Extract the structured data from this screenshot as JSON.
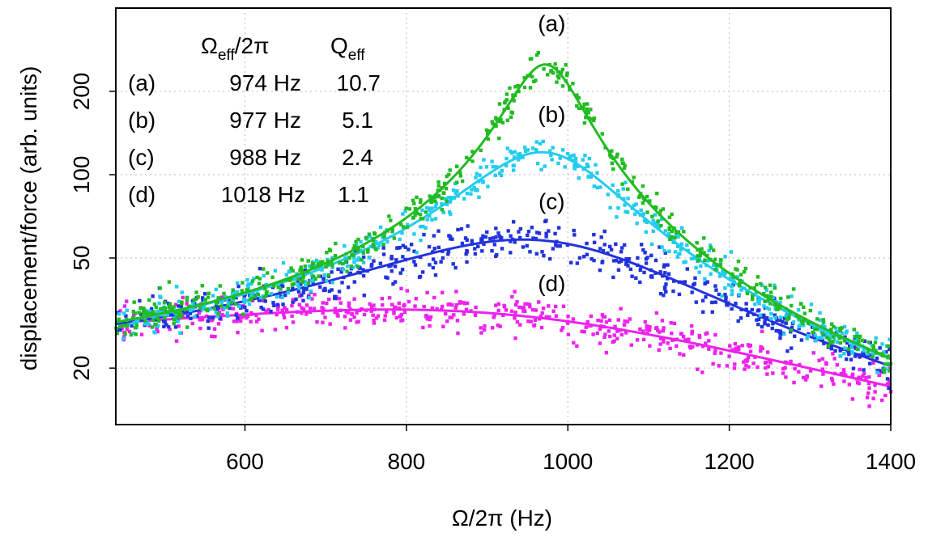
{
  "chart_data": {
    "type": "scatter",
    "x_scale": "linear",
    "y_scale": "log",
    "xlim": [
      440,
      1400
    ],
    "ylim": [
      12.5,
      400
    ],
    "xticks": [
      600,
      800,
      1000,
      1200,
      1400
    ],
    "yticks": [
      20,
      50,
      100,
      200
    ],
    "xlabel": "Ω/2π (Hz)",
    "ylabel": "displacement/force (arb. units)",
    "grid": true,
    "legend": {
      "placement": "top-left",
      "header_freq": "Ω",
      "header_freq_sub": "eff",
      "header_freq_suffix": "/2π",
      "header_q": "Q",
      "header_q_sub": "eff",
      "rows": [
        {
          "label": "(a)",
          "freq": "974 Hz",
          "q": "10.7",
          "color": "#22bb22"
        },
        {
          "label": "(b)",
          "freq": "977 Hz",
          "q": "5.1",
          "color": "#22ccee"
        },
        {
          "label": "(c)",
          "freq": "988 Hz",
          "q": "2.4",
          "color": "#2233dd"
        },
        {
          "label": "(d)",
          "freq": "1018 Hz",
          "q": "1.1",
          "color": "#ee22ee"
        }
      ]
    },
    "series": [
      {
        "name": "(a)",
        "color": "#22bb22",
        "f0": 974,
        "Q": 10.7,
        "peak": 250,
        "scatter": 0.07,
        "seed": 11,
        "label_at": [
          980,
          330
        ]
      },
      {
        "name": "(b)",
        "color": "#22ccee",
        "f0": 977,
        "Q": 5.1,
        "peak": 120,
        "scatter": 0.07,
        "seed": 23,
        "label_at": [
          980,
          155
        ]
      },
      {
        "name": "(c)",
        "color": "#2233dd",
        "f0": 988,
        "Q": 2.4,
        "peak": 57,
        "scatter": 0.08,
        "seed": 37,
        "label_at": [
          980,
          75
        ]
      },
      {
        "name": "(d)",
        "color": "#ee22ee",
        "f0": 1018,
        "Q": 1.1,
        "peak": 29,
        "scatter": 0.08,
        "seed": 53,
        "label_at": [
          980,
          38
        ]
      }
    ]
  }
}
